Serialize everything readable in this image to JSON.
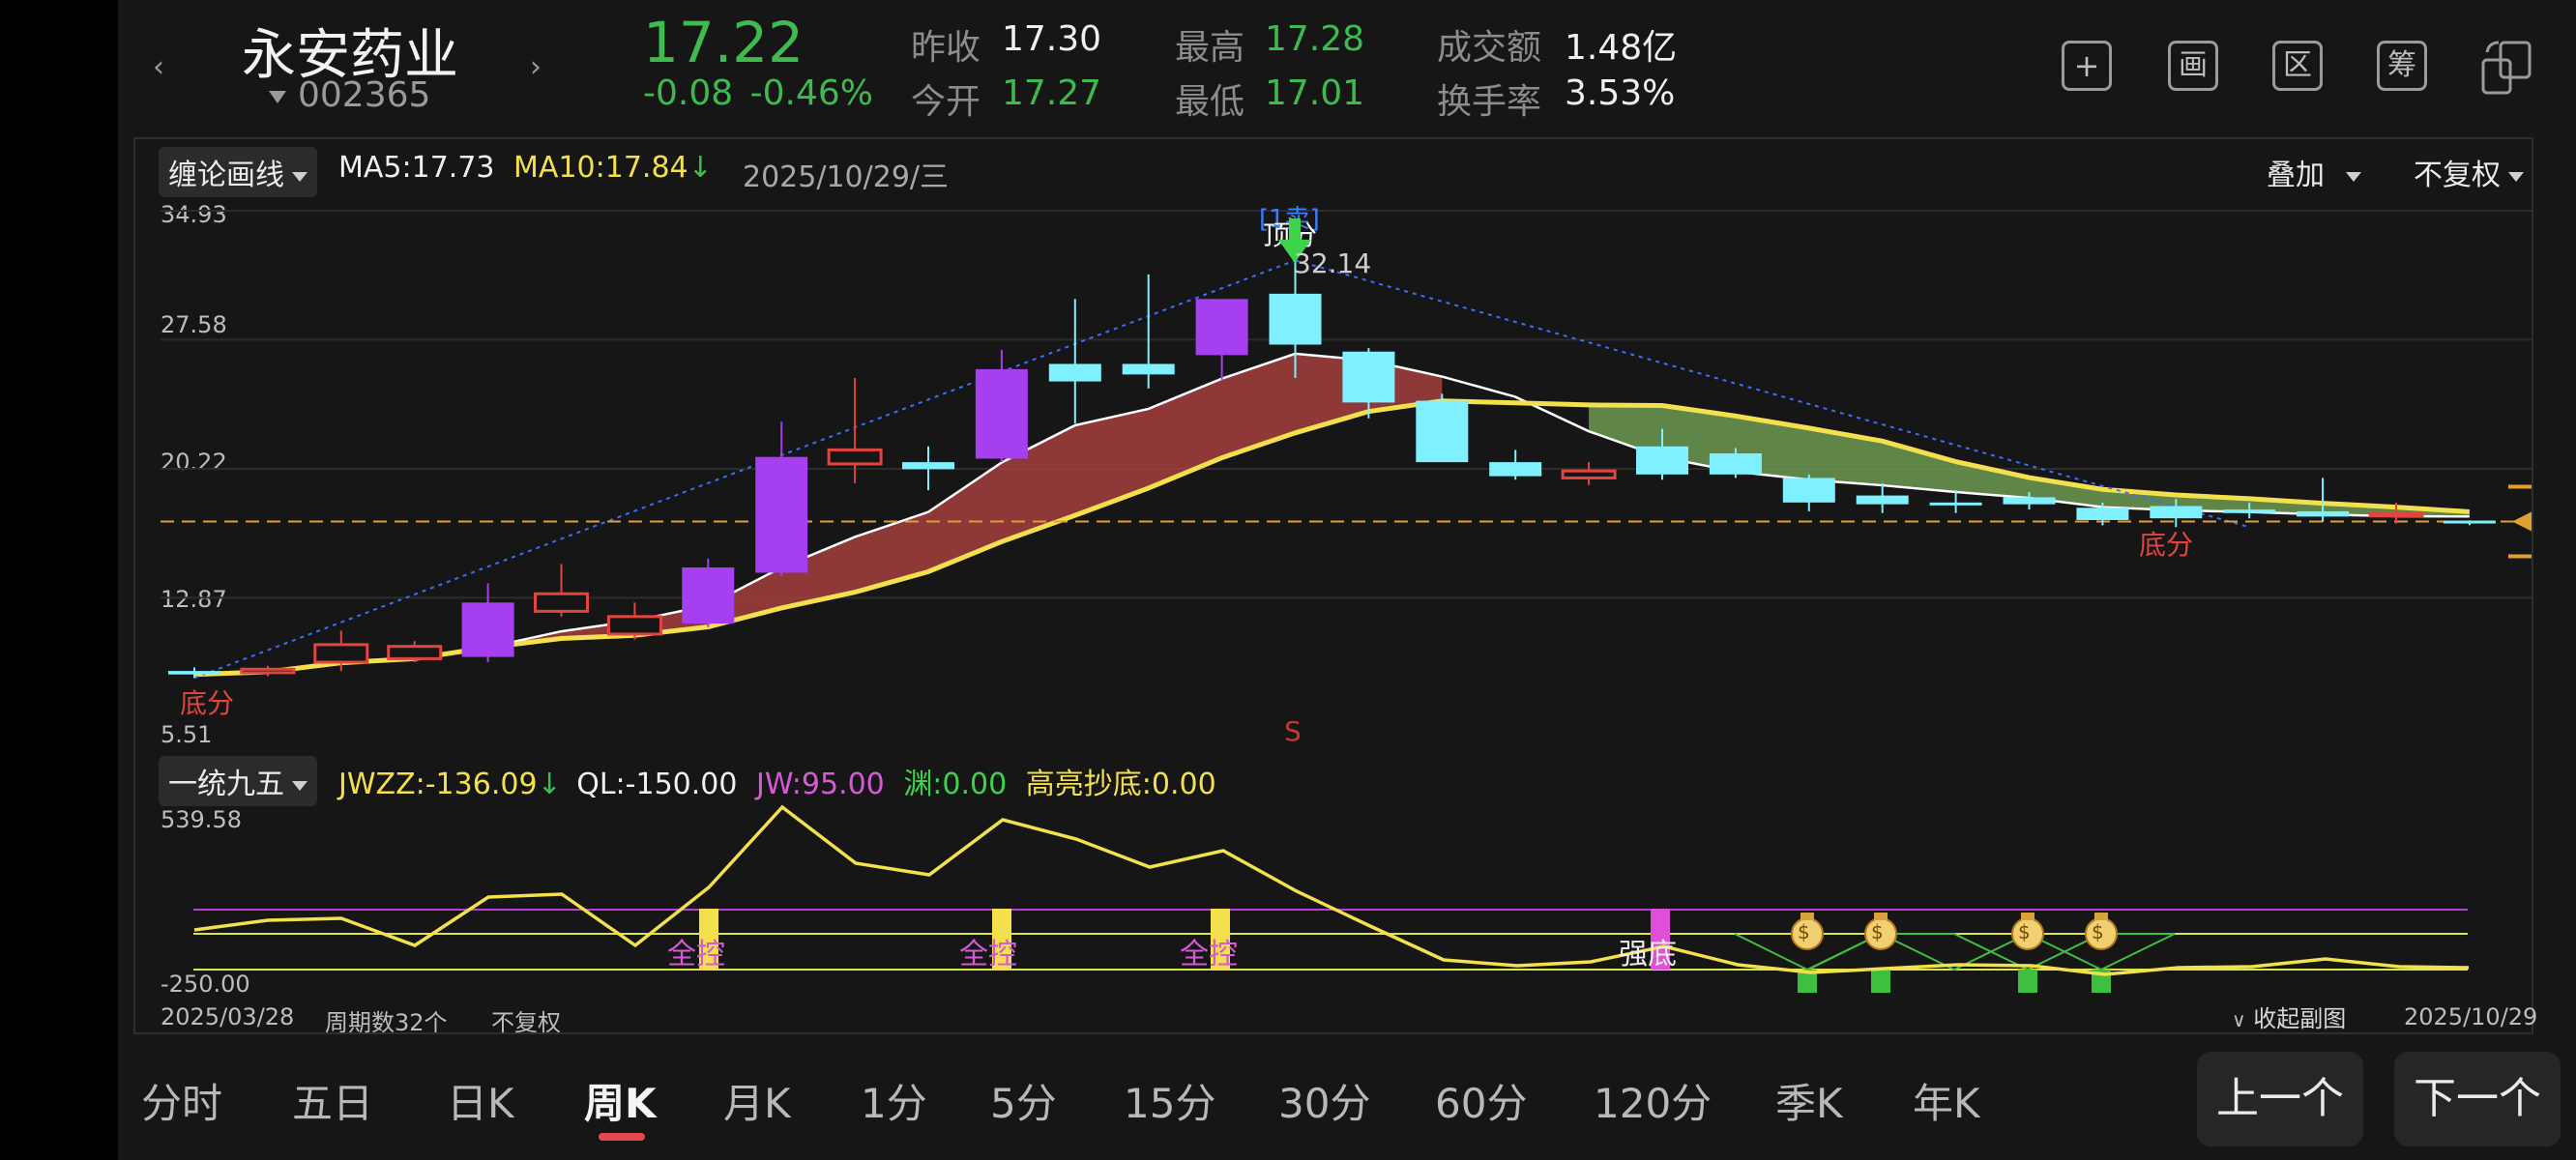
{
  "header": {
    "stock_name": "永安药业",
    "stock_code": "002365",
    "price": "17.22",
    "change": "-0.08",
    "change_pct": "-0.46%",
    "quote": [
      {
        "label": "昨收",
        "value": "17.30",
        "color": "#f0f0f0"
      },
      {
        "label": "今开",
        "value": "17.27",
        "color": "#3dbb4f"
      },
      {
        "label": "最高",
        "value": "17.28",
        "color": "#3dbb4f"
      },
      {
        "label": "最低",
        "value": "17.01",
        "color": "#3dbb4f"
      },
      {
        "label": "成交额",
        "value": "1.48亿",
        "color": "#f0f0f0"
      },
      {
        "label": "换手率",
        "value": "3.53%",
        "color": "#f0f0f0"
      }
    ],
    "tools": [
      {
        "icon": "add-icon",
        "glyph": "+"
      },
      {
        "icon": "draw-icon",
        "glyph": "画"
      },
      {
        "icon": "range-icon",
        "glyph": "区"
      },
      {
        "icon": "chips-icon",
        "glyph": "筹"
      },
      {
        "icon": "rotate-screen-icon",
        "glyph": ""
      }
    ],
    "prev_arrow": "‹",
    "next_arrow": "›"
  },
  "main_chart": {
    "indicator": "缠论画线",
    "ma5_label": "MA5:",
    "ma5_value": "17.73",
    "ma10_label": "MA10:",
    "ma10_value": "17.84",
    "ma10_arrow": "↓",
    "date": "2025/10/29/三",
    "overlay": "叠加",
    "adjust": "不复权",
    "y_ticks": [
      "34.93",
      "27.58",
      "20.22",
      "12.87",
      "5.51"
    ],
    "annotations": {
      "sell_tag": "[1卖]",
      "top_fractal": "顶分",
      "peak_value": "32.14",
      "bottom_fractal_left": "底分",
      "bottom_fractal_right": "底分",
      "s_marker": "S"
    }
  },
  "sub_chart": {
    "indicator": "一统九五",
    "jwzz_label": "JWZZ:",
    "jwzz_value": "-136.09",
    "jwzz_arrow": "↓",
    "ql_label": "QL:",
    "ql_value": "-150.00",
    "jw_label": "JW:",
    "jw_value": "95.00",
    "yuan_label": "渊:",
    "yuan_value": "0.00",
    "gl_label": "高亮抄底:",
    "gl_value": "0.00",
    "y_top": "539.58",
    "y_bottom": "-250.00",
    "signals": [
      "全控",
      "全控",
      "全控",
      "强底"
    ]
  },
  "footer": {
    "start_date": "2025/03/28",
    "period_count": "周期数32个",
    "adjust": "不复权",
    "collapse": "收起副图",
    "end_date": "2025/10/29"
  },
  "tabs": [
    "分时",
    "五日",
    "日K",
    "周K",
    "月K",
    "1分",
    "5分",
    "15分",
    "30分",
    "60分",
    "120分",
    "季K",
    "年K"
  ],
  "active_tab": "周K",
  "buttons": {
    "prev": "上一个",
    "next": "下一个"
  },
  "chart_data": {
    "type": "candlestick",
    "period": "weekly",
    "ylim": [
      5.51,
      34.93
    ],
    "ohlc_estimated": [
      [
        8.7,
        8.9,
        8.3,
        8.5
      ],
      [
        8.6,
        9.0,
        8.4,
        8.8
      ],
      [
        9.2,
        11.0,
        8.7,
        10.2
      ],
      [
        9.4,
        10.4,
        9.2,
        10.1
      ],
      [
        9.5,
        13.7,
        9.2,
        12.6
      ],
      [
        12.1,
        14.8,
        11.8,
        13.1
      ],
      [
        10.8,
        12.6,
        10.5,
        11.8
      ],
      [
        11.4,
        15.1,
        11.2,
        14.6
      ],
      [
        14.3,
        22.9,
        14.1,
        20.9
      ],
      [
        20.5,
        25.4,
        19.4,
        21.3
      ],
      [
        20.6,
        21.5,
        19.0,
        20.2
      ],
      [
        20.8,
        27.0,
        20.6,
        25.9
      ],
      [
        26.2,
        29.9,
        22.8,
        25.2
      ],
      [
        26.2,
        31.3,
        24.8,
        25.6
      ],
      [
        26.7,
        29.3,
        25.3,
        29.9
      ],
      [
        30.2,
        32.1,
        25.4,
        27.3
      ],
      [
        26.9,
        27.1,
        23.1,
        24.0
      ],
      [
        24.1,
        24.5,
        20.6,
        20.6
      ],
      [
        20.6,
        21.3,
        19.6,
        19.8
      ],
      [
        19.7,
        20.6,
        19.3,
        20.1
      ],
      [
        21.5,
        22.5,
        19.6,
        19.9
      ],
      [
        21.1,
        21.4,
        19.7,
        19.9
      ],
      [
        19.7,
        19.9,
        17.8,
        18.3
      ],
      [
        18.7,
        19.4,
        17.7,
        18.2
      ],
      [
        18.3,
        19.0,
        17.7,
        18.2
      ],
      [
        18.6,
        18.9,
        17.9,
        18.2
      ],
      [
        18.0,
        18.3,
        17.0,
        17.3
      ],
      [
        18.1,
        18.5,
        16.9,
        17.4
      ],
      [
        17.9,
        18.3,
        17.4,
        17.7
      ],
      [
        17.8,
        19.7,
        17.2,
        17.5
      ],
      [
        17.6,
        18.3,
        17.1,
        17.7
      ],
      [
        17.27,
        17.28,
        17.01,
        17.22
      ]
    ],
    "current_price": 17.22
  }
}
